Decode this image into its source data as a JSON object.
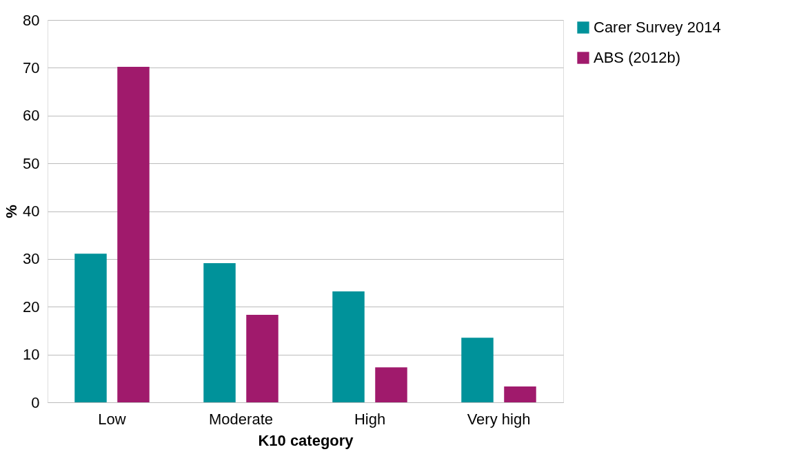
{
  "chart_data": {
    "type": "bar",
    "xlabel": "K10 category",
    "ylabel": "%",
    "categories": [
      "Low",
      "Moderate",
      "High",
      "Very high"
    ],
    "series": [
      {
        "name": "Carer Survey 2014",
        "color": "#00929a",
        "values": [
          31.1,
          29.1,
          23.2,
          13.5
        ]
      },
      {
        "name": "ABS (2012b)",
        "color": "#a01a6c",
        "values": [
          70.2,
          18.3,
          7.3,
          3.3
        ]
      }
    ],
    "ylim": [
      0,
      80
    ],
    "yticks": [
      0,
      10,
      20,
      30,
      40,
      50,
      60,
      70,
      80
    ],
    "grid": "y",
    "legend": "right"
  }
}
